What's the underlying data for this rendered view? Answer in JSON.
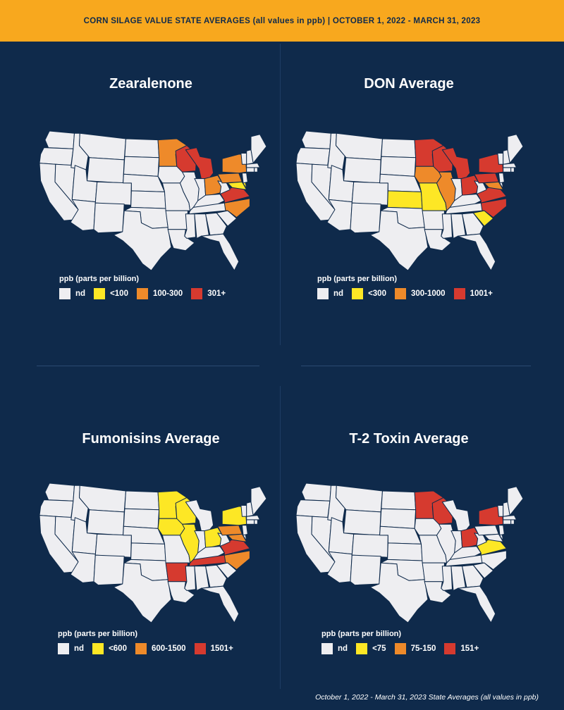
{
  "header": {
    "title": "CORN SILAGE VALUE STATE AVERAGES (all values in ppb) | OCTOBER 1, 2022 - MARCH 31, 2023"
  },
  "colors": {
    "background": "#0f2a4b",
    "banner": "#f8a81e",
    "state_default": "#eeeef1",
    "nd": "#eeeef1",
    "low": "#fde725",
    "mid": "#ee8a2a",
    "high": "#d63a2f"
  },
  "panels": [
    {
      "title": "Zearalenone",
      "legend_title": "ppb (parts per billion)",
      "legend": [
        {
          "label": "nd",
          "level": "nd"
        },
        {
          "label": "<100",
          "level": "low"
        },
        {
          "label": "100-300",
          "level": "mid"
        },
        {
          "label": "301+",
          "level": "high"
        }
      ],
      "states": {
        "MN": "mid",
        "WI": "high",
        "MI": "high",
        "OH": "mid",
        "PA": "mid",
        "NY": "mid",
        "MD": "low",
        "DE": "low",
        "NC": "mid",
        "VA": "high"
      }
    },
    {
      "title": "DON Average",
      "legend_title": "ppb (parts per billion)",
      "legend": [
        {
          "label": "nd",
          "level": "nd"
        },
        {
          "label": "<300",
          "level": "low"
        },
        {
          "label": "300-1000",
          "level": "mid"
        },
        {
          "label": "1001+",
          "level": "high"
        }
      ],
      "states": {
        "MN": "high",
        "WI": "high",
        "MI": "high",
        "IA": "mid",
        "IL": "mid",
        "KS": "low",
        "MO": "low",
        "OH": "high",
        "PA": "high",
        "NY": "high",
        "VA": "high",
        "NC": "high",
        "SC": "low",
        "MD": "mid"
      }
    },
    {
      "title": "Fumonisins Average",
      "legend_title": "ppb (parts per billion)",
      "legend": [
        {
          "label": "nd",
          "level": "nd"
        },
        {
          "label": "<600",
          "level": "low"
        },
        {
          "label": "600-1500",
          "level": "mid"
        },
        {
          "label": "1501+",
          "level": "high"
        }
      ],
      "states": {
        "MN": "low",
        "WI": "low",
        "IA": "low",
        "IL": "low",
        "OH": "low",
        "NY": "low",
        "PA": "mid",
        "MD": "mid",
        "AR": "high",
        "TN": "high",
        "VA": "high",
        "NC": "mid"
      }
    },
    {
      "title": "T-2 Toxin Average",
      "legend_title": "ppb (parts per billion)",
      "legend": [
        {
          "label": "nd",
          "level": "nd"
        },
        {
          "label": "<75",
          "level": "low"
        },
        {
          "label": "75-150",
          "level": "mid"
        },
        {
          "label": "151+",
          "level": "high"
        }
      ],
      "states": {
        "MN": "high",
        "WI": "high",
        "OH": "high",
        "NY": "high",
        "VA": "low"
      }
    }
  ],
  "footer": {
    "note": "October 1, 2022 - March 31, 2023 State Averages (all values in ppb)"
  }
}
